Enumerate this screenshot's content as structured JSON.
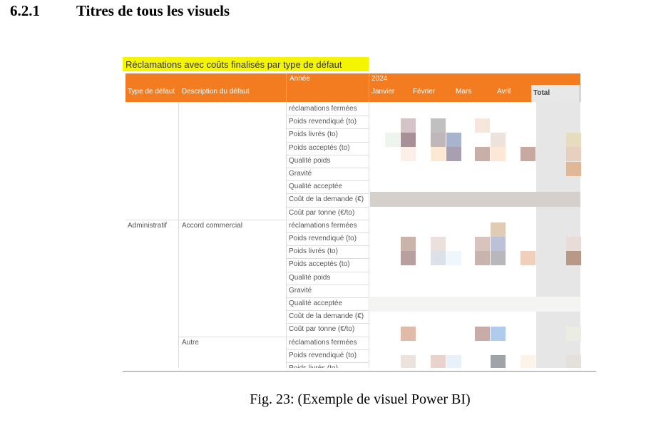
{
  "heading": {
    "number": "6.2.1",
    "title": "Titres de tous les visuels"
  },
  "visual": {
    "title": "Réclamations avec coûts finalisés par type de défaut",
    "header_top": [
      "Année",
      "2024"
    ],
    "columns": [
      "Type de défaut",
      "Description du défaut",
      "Janvier",
      "Février",
      "Mars",
      "Avril",
      "Total"
    ],
    "groups": [
      {
        "measures": [
          "réclamations fermées",
          "Poids revendiqué (to)",
          "Poids livrés (to)",
          "Poids acceptés (to)",
          "Qualité poids",
          "Gravité",
          "Qualité acceptée",
          "Coût de la demande (€)",
          "Coût par tonne (€/to)"
        ]
      },
      {
        "type": "Administratif",
        "description": "Accord commercial",
        "measures": [
          "réclamations fermées",
          "Poids revendiqué (to)",
          "Poids livrés (to)",
          "Poids acceptés (to)",
          "Qualité poids",
          "Gravité",
          "Qualité acceptée",
          "Coût de la demande (€)",
          "Coût par tonne (€/to)"
        ]
      },
      {
        "description": "Autre",
        "measures": [
          "réclamations fermées",
          "Poids revendiqué (to)",
          "Poids livrés (to)"
        ]
      }
    ]
  },
  "caption": "Fig. 23: (Exemple de visuel Power BI)"
}
